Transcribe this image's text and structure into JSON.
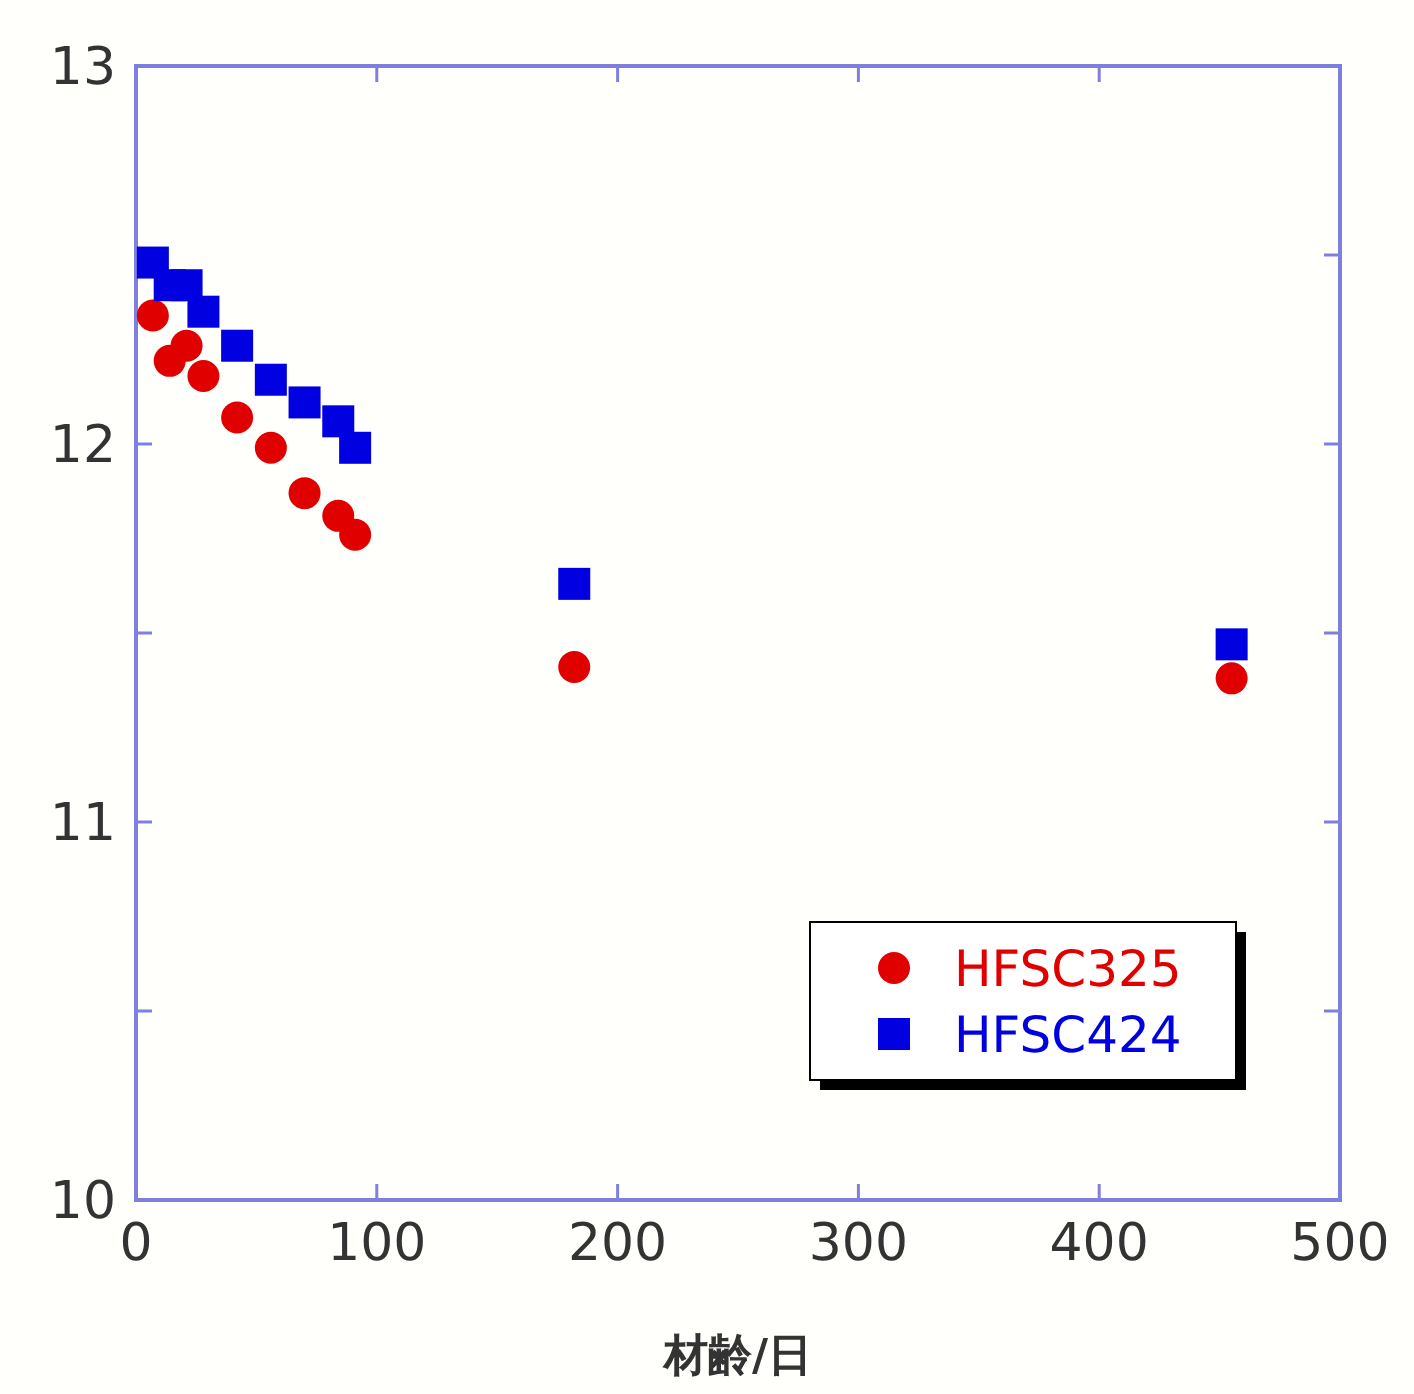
{
  "chart_data": {
    "type": "scatter",
    "xlabel": "材齢/日",
    "xlim": [
      0,
      500
    ],
    "xticks": [
      0,
      100,
      200,
      300,
      400,
      500
    ],
    "ylim": [
      10,
      13
    ],
    "yticks": [
      10,
      {
        "value": 10.5,
        "label": null
      },
      11,
      {
        "value": 11.5,
        "label": null
      },
      12,
      {
        "value": 12.5,
        "label": null
      },
      13
    ],
    "grid": false,
    "legend": "bottom right",
    "series": [
      {
        "name": "HFSC325",
        "color": "#e00000",
        "marker": "circle",
        "x": [
          7,
          14,
          21,
          28,
          42,
          56,
          70,
          84,
          91,
          182,
          455
        ],
        "values": [
          12.34,
          12.22,
          12.26,
          12.18,
          12.07,
          11.99,
          11.87,
          11.81,
          11.76,
          11.41,
          11.38
        ]
      },
      {
        "name": "HFSC424",
        "color": "#0000e0",
        "marker": "square",
        "x": [
          7,
          14,
          21,
          28,
          42,
          56,
          70,
          84,
          91,
          182,
          455
        ],
        "values": [
          12.48,
          12.42,
          12.42,
          12.35,
          12.26,
          12.17,
          12.11,
          12.06,
          11.99,
          11.63,
          11.47
        ]
      }
    ]
  }
}
